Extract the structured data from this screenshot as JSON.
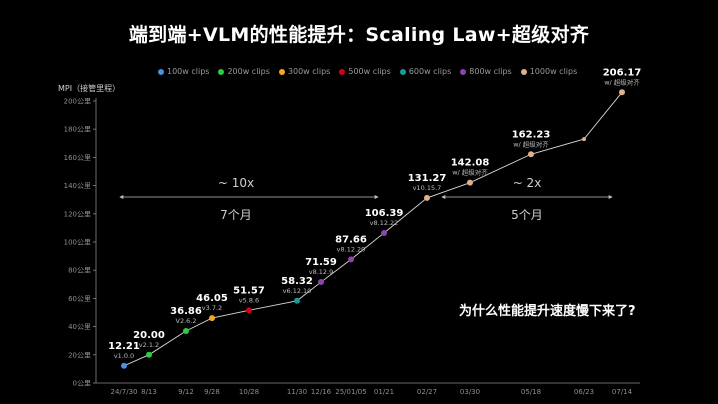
{
  "title": "端到端+VLM的性能提升：Scaling Law+超级对齐",
  "question": "为什么性能提升速度慢下来了?",
  "chart_data": {
    "type": "line",
    "title": "端到端+VLM的性能提升：Scaling Law+超级对齐",
    "ylabel": "MPI（接管里程）",
    "xlabel": "",
    "ylim": [
      0,
      200
    ],
    "yticks": [
      "0公里",
      "20公里",
      "40公里",
      "60公里",
      "80公里",
      "100公里",
      "120公里",
      "140公里",
      "160公里",
      "180公里",
      "200公里"
    ],
    "grid": false,
    "legend_position": "top",
    "legend": [
      {
        "label": "100w clips",
        "color": "#4a90e2"
      },
      {
        "label": "200w clips",
        "color": "#2ecc40"
      },
      {
        "label": "300w clips",
        "color": "#f5a623"
      },
      {
        "label": "500w clips",
        "color": "#d0021b"
      },
      {
        "label": "600w clips",
        "color": "#1a9a9a"
      },
      {
        "label": "800w clips",
        "color": "#8e44ad"
      },
      {
        "label": "1000w clips",
        "color": "#e0b08a"
      }
    ],
    "x_labels": [
      "24/7/30",
      "8/13",
      "9/12",
      "9/28",
      "10/28",
      "11/30",
      "12/16",
      "25/01/05",
      "01/21",
      "02/27",
      "03/30",
      "05/18",
      "06/23",
      "07/14"
    ],
    "points": [
      {
        "x": "24/7/30",
        "y": 12.21,
        "label": "12.21",
        "version": "v1.0.0",
        "color": "#4a90e2"
      },
      {
        "x": "8/13",
        "y": 20.0,
        "label": "20.00",
        "version": "v2.1.2",
        "color": "#2ecc40"
      },
      {
        "x": "9/12",
        "y": 36.86,
        "label": "36.86",
        "version": "V2.6.2",
        "color": "#2ecc40"
      },
      {
        "x": "9/28",
        "y": 46.05,
        "label": "46.05",
        "version": "v3.7.2",
        "color": "#f5a623"
      },
      {
        "x": "10/28",
        "y": 51.57,
        "label": "51.57",
        "version": "v5.8.6",
        "color": "#d0021b"
      },
      {
        "x": "11/30",
        "y": 58.32,
        "label": "58.32",
        "version": "v6.12.10",
        "color": "#1a9a9a"
      },
      {
        "x": "12/16",
        "y": 71.59,
        "label": "71.59",
        "version": "v8.12.9",
        "color": "#8e44ad"
      },
      {
        "x": "25/01/05",
        "y": 87.66,
        "label": "87.66",
        "version": "v8.12.20",
        "color": "#8e44ad"
      },
      {
        "x": "01/21",
        "y": 106.39,
        "label": "106.39",
        "version": "v8.12.22",
        "color": "#8e44ad"
      },
      {
        "x": "02/27",
        "y": 131.27,
        "label": "131.27",
        "version": "v10.15.7",
        "color": "#e0b08a"
      },
      {
        "x": "03/30",
        "y": 142.08,
        "label": "142.08",
        "version": "w/ 超级对齐",
        "color": "#e0b08a"
      },
      {
        "x": "05/18",
        "y": 162.23,
        "label": "162.23",
        "version": "w/ 超级对齐",
        "color": "#e0b08a"
      },
      {
        "x": "06/23",
        "y": 173,
        "label": "",
        "version": "",
        "color": "#e0b08a"
      },
      {
        "x": "07/14",
        "y": 206.17,
        "label": "206.17",
        "version": "w/ 超级对齐",
        "color": "#e0b08a"
      }
    ],
    "annotations": [
      {
        "from": "24/7/30",
        "to": "02/27",
        "text_top": "~ 10x",
        "text_bottom": "7个月"
      },
      {
        "from": "02/27",
        "to": "07/14",
        "text_top": "~ 2x",
        "text_bottom": "5个月"
      }
    ]
  }
}
